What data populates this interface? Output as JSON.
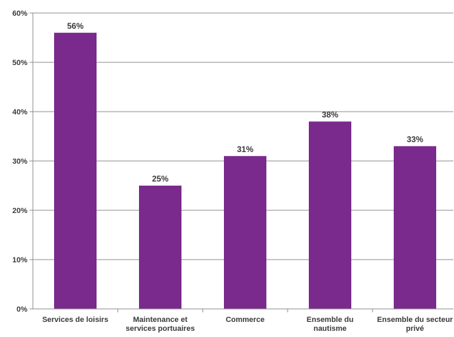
{
  "chart_data": {
    "type": "bar",
    "categories": [
      [
        "Services de loisirs"
      ],
      [
        "Maintenance et",
        "services portuaires"
      ],
      [
        "Commerce"
      ],
      [
        "Ensemble du",
        "nautisme"
      ],
      [
        "Ensemble du secteur",
        "privé"
      ]
    ],
    "values": [
      56,
      25,
      31,
      38,
      33
    ],
    "data_labels": [
      "56%",
      "25%",
      "31%",
      "38%",
      "33%"
    ],
    "y_ticks": [
      "0%",
      "10%",
      "20%",
      "30%",
      "40%",
      "50%",
      "60%"
    ],
    "ylim": [
      0,
      60
    ],
    "grid": true,
    "colors": {
      "bar": "#7a2a8c",
      "axis": "#8c8c8c",
      "grid": "#8c8c8c"
    }
  }
}
